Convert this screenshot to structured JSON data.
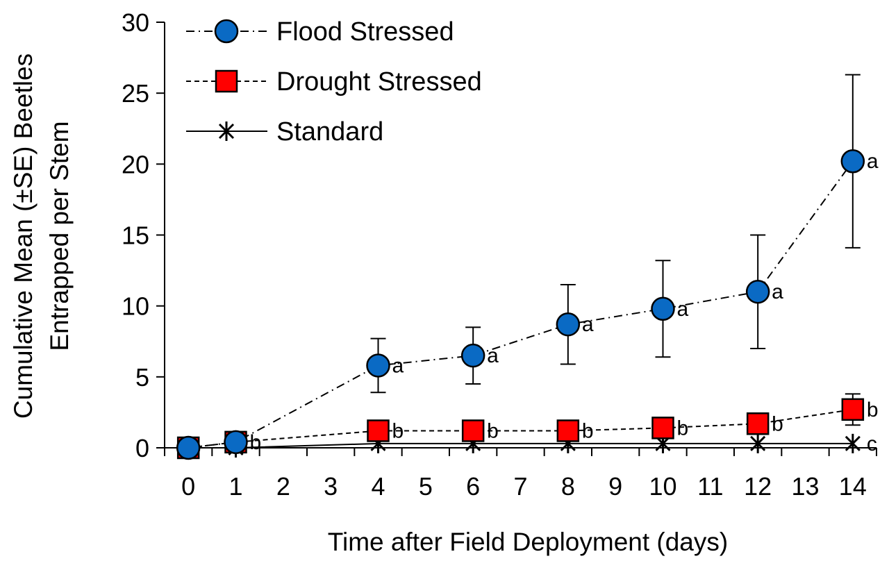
{
  "chart_data": {
    "type": "line",
    "title": "",
    "xlabel": "Time after Field Deployment (days)",
    "ylabel_lines": [
      "Cumulative Mean (±SE) Beetles",
      "Entrapped per Stem"
    ],
    "xlim": [
      -0.5,
      14.5
    ],
    "ylim": [
      0,
      30
    ],
    "x_ticks": [
      0,
      1,
      2,
      3,
      4,
      5,
      6,
      7,
      8,
      9,
      10,
      11,
      12,
      13,
      14
    ],
    "y_ticks": [
      0,
      5,
      10,
      15,
      20,
      25,
      30
    ],
    "grid": false,
    "legend_position": "top-left",
    "series": [
      {
        "name": "Flood Stressed",
        "marker": "circle",
        "line_style": "dash-dot",
        "color": "#0A6AC4",
        "x": [
          0,
          1,
          4,
          6,
          8,
          10,
          12,
          14
        ],
        "y": [
          0,
          0.4,
          5.8,
          6.5,
          8.7,
          9.8,
          11.0,
          20.2
        ],
        "se": [
          0,
          0,
          1.9,
          2.0,
          2.8,
          3.4,
          4.0,
          6.1
        ],
        "labels": [
          "",
          "",
          "a",
          "a",
          "a",
          "a",
          "a",
          "a"
        ]
      },
      {
        "name": "Drought Stressed",
        "marker": "square",
        "line_style": "dashed",
        "color": "#FF0000",
        "x": [
          0,
          1,
          4,
          6,
          8,
          10,
          12,
          14
        ],
        "y": [
          0,
          0.4,
          1.2,
          1.2,
          1.2,
          1.4,
          1.7,
          2.7
        ],
        "se": [
          0,
          0,
          0.15,
          0.15,
          0.15,
          0.2,
          0.2,
          1.1
        ],
        "labels": [
          "",
          "b",
          "b",
          "b",
          "b",
          "b",
          "b",
          "b"
        ]
      },
      {
        "name": "Standard",
        "marker": "asterisk",
        "line_style": "solid",
        "color": "#000000",
        "x": [
          0,
          1,
          4,
          6,
          8,
          10,
          12,
          14
        ],
        "y": [
          0,
          0,
          0.3,
          0.3,
          0.3,
          0.3,
          0.3,
          0.3
        ],
        "se": [
          0,
          0,
          0,
          0,
          0,
          0,
          0,
          0
        ],
        "labels": [
          "",
          "",
          "",
          "",
          "",
          "",
          "",
          "c"
        ]
      }
    ]
  }
}
